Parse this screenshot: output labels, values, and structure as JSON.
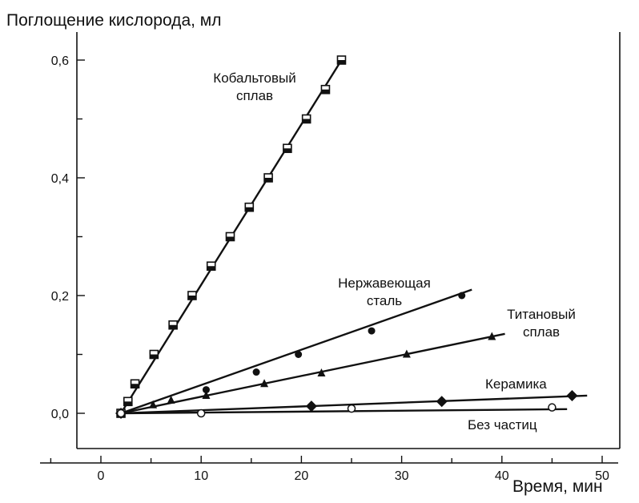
{
  "chart_data": {
    "type": "line",
    "title": "",
    "ylabel": "Поглощение кислорода, мл",
    "xlabel": "Время, мин",
    "xlim": [
      -5,
      52
    ],
    "ylim": [
      -0.05,
      0.65
    ],
    "xticks": [
      0,
      10,
      20,
      30,
      40,
      50
    ],
    "xtick_labels": [
      "0",
      "10",
      "20",
      "30",
      "40",
      "50"
    ],
    "yticks": [
      0.0,
      0.2,
      0.4,
      0.6
    ],
    "ytick_labels": [
      "0,0",
      "0,2",
      "0,4",
      "0,6"
    ],
    "grid": false,
    "series": [
      {
        "name": "Кобальтовый сплав",
        "label_lines": [
          "Кобальтовый",
          "сплав"
        ],
        "marker": "square-half",
        "line": [
          [
            2,
            0
          ],
          [
            24,
            0.6
          ]
        ],
        "points": [
          [
            2,
            0
          ],
          [
            2.7,
            0.02
          ],
          [
            3.4,
            0.05
          ],
          [
            5.3,
            0.1
          ],
          [
            7.2,
            0.15
          ],
          [
            9.1,
            0.2
          ],
          [
            11.0,
            0.25
          ],
          [
            12.9,
            0.3
          ],
          [
            14.8,
            0.35
          ],
          [
            16.7,
            0.4
          ],
          [
            18.6,
            0.45
          ],
          [
            20.5,
            0.5
          ],
          [
            22.4,
            0.55
          ],
          [
            24.0,
            0.6
          ]
        ]
      },
      {
        "name": "Нержавеющая сталь",
        "label_lines": [
          "Нержавеющая",
          "сталь"
        ],
        "marker": "circle-filled",
        "line": [
          [
            2,
            0
          ],
          [
            37,
            0.21
          ]
        ],
        "points": [
          [
            2,
            0
          ],
          [
            10.5,
            0.04
          ],
          [
            15.5,
            0.07
          ],
          [
            19.7,
            0.1
          ],
          [
            27.0,
            0.14
          ],
          [
            36.0,
            0.2
          ]
        ]
      },
      {
        "name": "Титановый сплав",
        "label_lines": [
          "Титановый",
          "сплав"
        ],
        "marker": "triangle-filled",
        "line": [
          [
            2,
            0
          ],
          [
            40.3,
            0.135
          ]
        ],
        "points": [
          [
            2,
            0
          ],
          [
            5.2,
            0.014
          ],
          [
            7.0,
            0.022
          ],
          [
            10.5,
            0.03
          ],
          [
            16.3,
            0.05
          ],
          [
            22.0,
            0.068
          ],
          [
            30.5,
            0.1
          ],
          [
            39.0,
            0.13
          ]
        ]
      },
      {
        "name": "Керамика",
        "label_lines": [
          "Керамика"
        ],
        "marker": "diamond-filled",
        "line": [
          [
            2,
            0
          ],
          [
            48.5,
            0.03
          ]
        ],
        "points": [
          [
            2,
            0
          ],
          [
            21.0,
            0.012
          ],
          [
            34.0,
            0.02
          ],
          [
            47.0,
            0.03
          ]
        ]
      },
      {
        "name": "Без частиц",
        "label_lines": [
          "Без частиц"
        ],
        "marker": "circle-open",
        "line": [
          [
            2,
            0
          ],
          [
            46.5,
            0.007
          ]
        ],
        "points": [
          [
            2,
            0
          ],
          [
            10.0,
            0.0
          ],
          [
            25.0,
            0.008
          ],
          [
            45.0,
            0.01
          ]
        ]
      }
    ]
  }
}
